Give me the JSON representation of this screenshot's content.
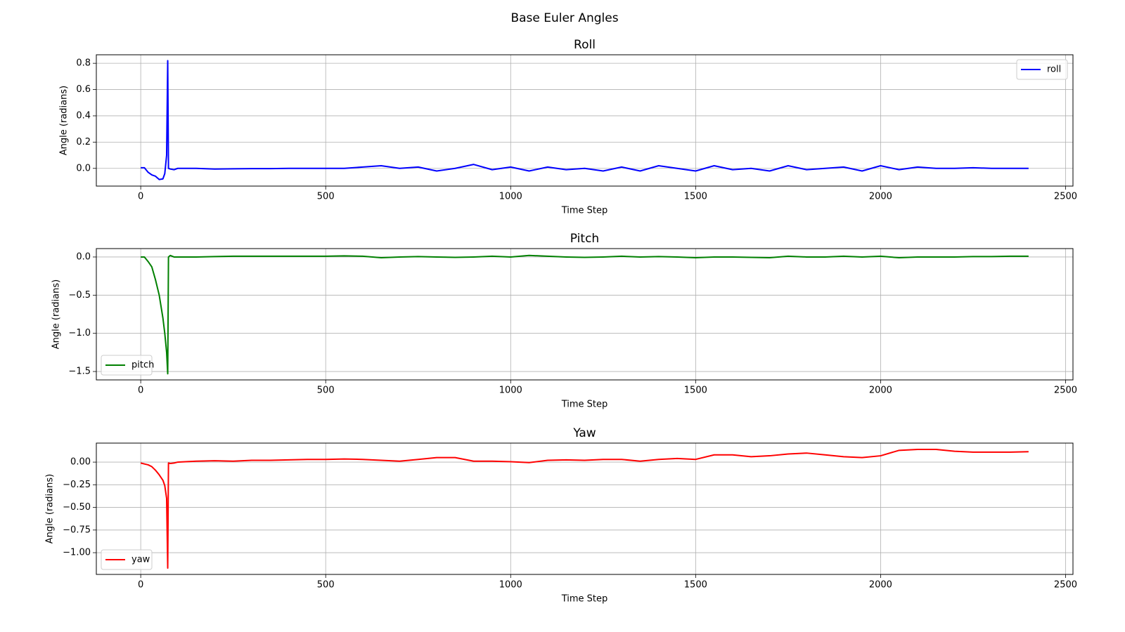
{
  "title": "Base Euler Angles",
  "chart_data": [
    {
      "type": "line",
      "title": "Roll",
      "xlabel": "Time Step",
      "ylabel": "Angle (radians)",
      "x": [
        0,
        10,
        20,
        30,
        40,
        50,
        60,
        65,
        70,
        73,
        75,
        80,
        90,
        100,
        150,
        200,
        250,
        300,
        350,
        400,
        450,
        500,
        550,
        600,
        650,
        700,
        750,
        800,
        850,
        900,
        950,
        1000,
        1050,
        1100,
        1150,
        1200,
        1250,
        1300,
        1350,
        1400,
        1450,
        1500,
        1550,
        1600,
        1650,
        1700,
        1750,
        1800,
        1850,
        1900,
        1950,
        2000,
        2050,
        2100,
        2150,
        2200,
        2250,
        2300,
        2350,
        2400
      ],
      "series": [
        {
          "name": "roll",
          "color": "#0000ff",
          "values": [
            0.005,
            0.005,
            -0.03,
            -0.05,
            -0.06,
            -0.085,
            -0.08,
            -0.04,
            0.1,
            0.82,
            0.0,
            -0.005,
            -0.01,
            0.0,
            0.0,
            -0.005,
            -0.003,
            -0.002,
            -0.002,
            0.0,
            0.0,
            0.0,
            0.0,
            0.01,
            0.02,
            0.0,
            0.01,
            -0.02,
            0.0,
            0.03,
            -0.01,
            0.01,
            -0.02,
            0.01,
            -0.01,
            0.0,
            -0.02,
            0.01,
            -0.02,
            0.02,
            0.0,
            -0.02,
            0.02,
            -0.01,
            0.0,
            -0.02,
            0.02,
            -0.01,
            0.0,
            0.01,
            -0.02,
            0.02,
            -0.01,
            0.01,
            0.0,
            0.0,
            0.005,
            0.0,
            0.0,
            0.0
          ]
        }
      ],
      "xlim": [
        -120,
        2520
      ],
      "xticks": [
        0,
        500,
        1000,
        1500,
        2000,
        2500
      ],
      "ylim": [
        -0.135,
        0.865
      ],
      "yticks": [
        {
          "value": 0,
          "label": "0.0"
        },
        0.2,
        0.4,
        0.6,
        0.8
      ],
      "grid": true,
      "legend": "upper right"
    },
    {
      "type": "line",
      "title": "Pitch",
      "xlabel": "Time Step",
      "ylabel": "Angle (radians)",
      "x": [
        0,
        10,
        20,
        30,
        40,
        50,
        60,
        65,
        70,
        73,
        75,
        80,
        90,
        100,
        150,
        200,
        250,
        300,
        350,
        400,
        450,
        500,
        550,
        600,
        650,
        700,
        750,
        800,
        850,
        900,
        950,
        1000,
        1050,
        1100,
        1150,
        1200,
        1250,
        1300,
        1350,
        1400,
        1450,
        1500,
        1550,
        1600,
        1650,
        1700,
        1750,
        1800,
        1850,
        1900,
        1950,
        2000,
        2050,
        2100,
        2150,
        2200,
        2250,
        2300,
        2350,
        2400
      ],
      "series": [
        {
          "name": "pitch",
          "color": "#008000",
          "values": [
            0,
            0,
            -0.06,
            -0.13,
            -0.3,
            -0.5,
            -0.8,
            -1.0,
            -1.25,
            -1.53,
            0.0,
            0.02,
            0.0,
            0.0,
            0.0,
            0.005,
            0.01,
            0.01,
            0.01,
            0.01,
            0.01,
            0.01,
            0.015,
            0.01,
            -0.01,
            0.0,
            0.005,
            0.0,
            -0.005,
            0.0,
            0.01,
            0.0,
            0.02,
            0.01,
            0.0,
            -0.005,
            0.0,
            0.01,
            0.0,
            0.005,
            0.0,
            -0.01,
            0.0,
            0.0,
            -0.005,
            -0.01,
            0.01,
            0.0,
            0.0,
            0.01,
            0.0,
            0.01,
            -0.01,
            0.0,
            0.0,
            0.0,
            0.005,
            0.005,
            0.01,
            0.01
          ]
        }
      ],
      "xlim": [
        -120,
        2520
      ],
      "xticks": [
        0,
        500,
        1000,
        1500,
        2000,
        2500
      ],
      "ylim": [
        -1.61,
        0.11
      ],
      "yticks": [
        {
          "value": -1.5,
          "label": "−1.5"
        },
        {
          "value": -1,
          "label": "−1.0"
        },
        {
          "value": -0.5,
          "label": "−0.5"
        },
        {
          "value": 0,
          "label": "0.0"
        }
      ],
      "grid": true,
      "legend": "lower left"
    },
    {
      "type": "line",
      "title": "Yaw",
      "xlabel": "Time Step",
      "ylabel": "Angle (radians)",
      "x": [
        0,
        10,
        20,
        30,
        40,
        50,
        60,
        65,
        70,
        73,
        75,
        80,
        90,
        100,
        150,
        200,
        250,
        300,
        350,
        400,
        450,
        500,
        550,
        600,
        650,
        700,
        750,
        800,
        850,
        900,
        950,
        1000,
        1050,
        1100,
        1150,
        1200,
        1250,
        1300,
        1350,
        1400,
        1450,
        1500,
        1550,
        1600,
        1650,
        1700,
        1750,
        1800,
        1850,
        1900,
        1950,
        2000,
        2050,
        2100,
        2150,
        2200,
        2250,
        2300,
        2350,
        2400
      ],
      "series": [
        {
          "name": "yaw",
          "color": "#ff0000",
          "values": [
            -0.01,
            -0.02,
            -0.03,
            -0.05,
            -0.09,
            -0.14,
            -0.2,
            -0.26,
            -0.4,
            -1.17,
            -0.01,
            -0.015,
            -0.01,
            0.0,
            0.01,
            0.015,
            0.01,
            0.02,
            0.02,
            0.025,
            0.03,
            0.03,
            0.035,
            0.03,
            0.02,
            0.01,
            0.03,
            0.05,
            0.05,
            0.01,
            0.01,
            0.005,
            -0.005,
            0.02,
            0.025,
            0.02,
            0.03,
            0.03,
            0.01,
            0.03,
            0.04,
            0.03,
            0.08,
            0.08,
            0.06,
            0.07,
            0.09,
            0.1,
            0.08,
            0.06,
            0.05,
            0.07,
            0.13,
            0.14,
            0.14,
            0.12,
            0.11,
            0.11,
            0.11,
            0.115
          ]
        }
      ],
      "xlim": [
        -120,
        2520
      ],
      "xticks": [
        0,
        500,
        1000,
        1500,
        2000,
        2500
      ],
      "ylim": [
        -1.24,
        0.21
      ],
      "yticks": [
        {
          "value": -1,
          "label": "−1.00"
        },
        {
          "value": -0.75,
          "label": "−0.75"
        },
        {
          "value": -0.5,
          "label": "−0.50"
        },
        {
          "value": -0.25,
          "label": "−0.25"
        },
        {
          "value": 0,
          "label": "0.00"
        }
      ],
      "grid": true,
      "legend": "lower left"
    }
  ]
}
